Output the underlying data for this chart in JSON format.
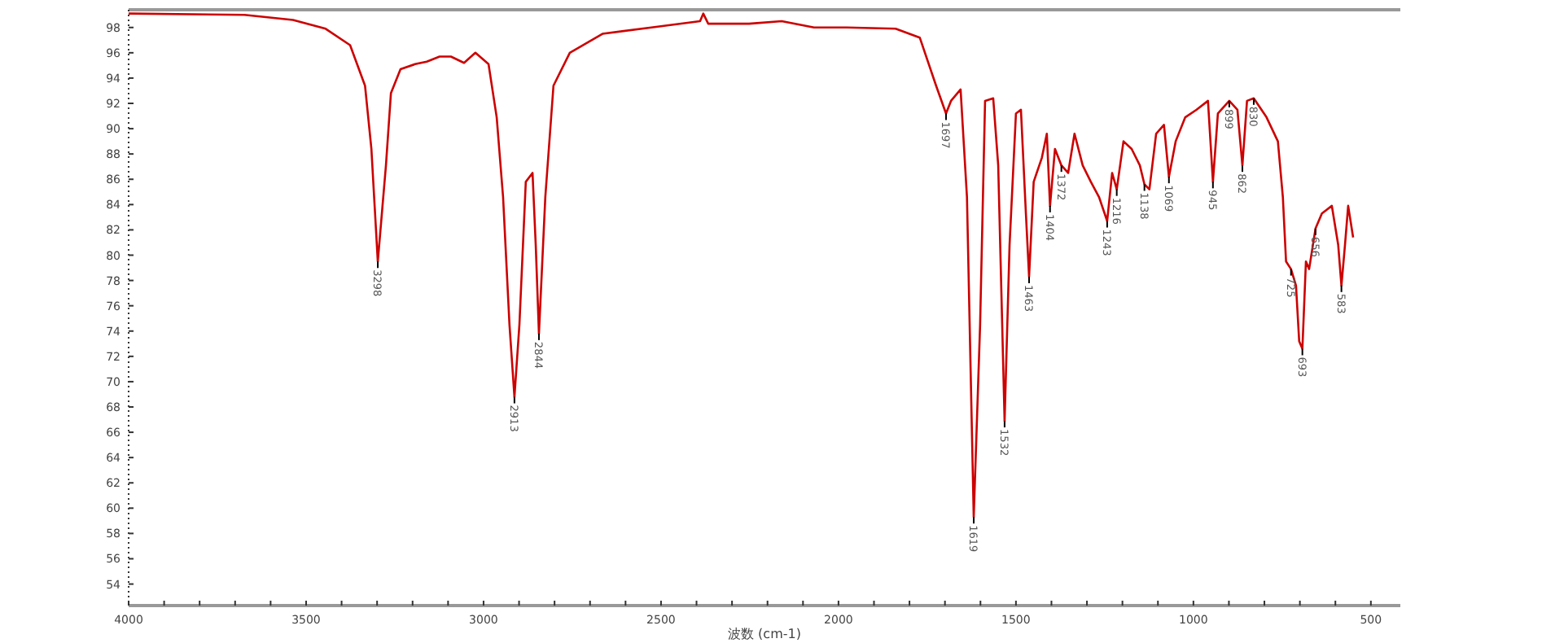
{
  "chart_data": {
    "type": "line",
    "xlabel": "波数 (cm-1)",
    "xlim": [
      4000,
      417
    ],
    "ylim": [
      52.3,
      99.4
    ],
    "xticks": [
      {
        "value": 4000,
        "label": "4000"
      },
      {
        "value": 3900,
        "label": null
      },
      {
        "value": 3800,
        "label": null
      },
      {
        "value": 3700,
        "label": null
      },
      {
        "value": 3600,
        "label": null
      },
      {
        "value": 3500,
        "label": "3500"
      },
      {
        "value": 3400,
        "label": null
      },
      {
        "value": 3300,
        "label": null
      },
      {
        "value": 3200,
        "label": null
      },
      {
        "value": 3100,
        "label": null
      },
      {
        "value": 3000,
        "label": "3000"
      },
      {
        "value": 2900,
        "label": null
      },
      {
        "value": 2800,
        "label": null
      },
      {
        "value": 2700,
        "label": null
      },
      {
        "value": 2600,
        "label": null
      },
      {
        "value": 2500,
        "label": "2500"
      },
      {
        "value": 2400,
        "label": null
      },
      {
        "value": 2300,
        "label": null
      },
      {
        "value": 2200,
        "label": null
      },
      {
        "value": 2100,
        "label": null
      },
      {
        "value": 2000,
        "label": "2000"
      },
      {
        "value": 1900,
        "label": null
      },
      {
        "value": 1800,
        "label": null
      },
      {
        "value": 1700,
        "label": null
      },
      {
        "value": 1600,
        "label": null
      },
      {
        "value": 1500,
        "label": "1500"
      },
      {
        "value": 1400,
        "label": null
      },
      {
        "value": 1300,
        "label": null
      },
      {
        "value": 1200,
        "label": null
      },
      {
        "value": 1100,
        "label": null
      },
      {
        "value": 1000,
        "label": "1000"
      },
      {
        "value": 900,
        "label": null
      },
      {
        "value": 800,
        "label": null
      },
      {
        "value": 700,
        "label": null
      },
      {
        "value": 600,
        "label": null
      },
      {
        "value": 500,
        "label": "500"
      }
    ],
    "yticks": [
      54,
      56,
      58,
      60,
      62,
      64,
      66,
      68,
      70,
      72,
      74,
      76,
      78,
      80,
      82,
      84,
      86,
      88,
      90,
      92,
      94,
      96,
      98
    ],
    "grid": false,
    "series": [
      {
        "color": "#cc0000",
        "x": [
          4000,
          3674,
          3537,
          3445,
          3376,
          3334,
          3316,
          3298,
          3275,
          3261,
          3234,
          3193,
          3160,
          3124,
          3092,
          3055,
          3023,
          2986,
          2963,
          2945,
          2927,
          2913,
          2899,
          2881,
          2862,
          2853,
          2844,
          2826,
          2803,
          2757,
          2665,
          2527,
          2390,
          2381,
          2367,
          2252,
          2160,
          2069,
          1977,
          1839,
          1771,
          1725,
          1697,
          1683,
          1656,
          1638,
          1619,
          1601,
          1587,
          1564,
          1550,
          1532,
          1518,
          1500,
          1486,
          1472,
          1463,
          1450,
          1427,
          1413,
          1404,
          1390,
          1372,
          1353,
          1335,
          1312,
          1289,
          1266,
          1243,
          1229,
          1216,
          1197,
          1174,
          1151,
          1138,
          1124,
          1105,
          1083,
          1069,
          1050,
          1023,
          991,
          959,
          945,
          931,
          899,
          876,
          862,
          849,
          830,
          794,
          762,
          748,
          739,
          725,
          711,
          702,
          693,
          683,
          674,
          656,
          638,
          610,
          592,
          583,
          573,
          564,
          550
        ],
        "values": [
          99.1,
          99.0,
          98.6,
          97.9,
          96.6,
          93.4,
          88.4,
          79.5,
          87.1,
          92.8,
          94.7,
          95.1,
          95.3,
          95.7,
          95.7,
          95.2,
          96.0,
          95.1,
          90.9,
          84.6,
          74.5,
          68.8,
          74.5,
          85.8,
          86.5,
          80.8,
          73.8,
          84.6,
          93.4,
          96.0,
          97.5,
          98.0,
          98.5,
          99.1,
          98.3,
          98.3,
          98.5,
          98.0,
          98.0,
          97.9,
          97.2,
          93.4,
          91.2,
          92.2,
          93.1,
          84.6,
          59.3,
          74.5,
          92.2,
          92.4,
          87.1,
          66.9,
          80.8,
          91.2,
          91.5,
          83.3,
          78.3,
          85.8,
          87.7,
          89.6,
          83.9,
          88.4,
          87.1,
          86.5,
          89.6,
          87.1,
          85.8,
          84.6,
          82.7,
          86.5,
          85.2,
          89.0,
          88.4,
          87.1,
          85.6,
          85.2,
          89.6,
          90.3,
          86.2,
          89.0,
          90.9,
          91.5,
          92.2,
          85.8,
          91.2,
          92.2,
          91.5,
          87.1,
          92.2,
          92.4,
          90.9,
          89.0,
          84.6,
          79.5,
          78.9,
          77.6,
          73.2,
          72.6,
          79.5,
          78.9,
          82.1,
          83.3,
          83.9,
          80.8,
          77.6,
          80.8,
          83.9,
          81.4
        ]
      }
    ],
    "annotations": [
      {
        "text": "3298",
        "x": 3298,
        "y": 79.5
      },
      {
        "text": "2913",
        "x": 2913,
        "y": 68.8
      },
      {
        "text": "2844",
        "x": 2844,
        "y": 73.8
      },
      {
        "text": "1697",
        "x": 1697,
        "y": 91.2
      },
      {
        "text": "1619",
        "x": 1619,
        "y": 59.3
      },
      {
        "text": "1532",
        "x": 1532,
        "y": 66.9
      },
      {
        "text": "1463",
        "x": 1463,
        "y": 78.3
      },
      {
        "text": "1404",
        "x": 1404,
        "y": 83.9
      },
      {
        "text": "1372",
        "x": 1372,
        "y": 87.1
      },
      {
        "text": "1243",
        "x": 1243,
        "y": 82.7
      },
      {
        "text": "1216",
        "x": 1216,
        "y": 85.2
      },
      {
        "text": "1138",
        "x": 1138,
        "y": 85.6
      },
      {
        "text": "1069",
        "x": 1069,
        "y": 86.2
      },
      {
        "text": "945",
        "x": 945,
        "y": 85.8
      },
      {
        "text": "899",
        "x": 899,
        "y": 92.2
      },
      {
        "text": "862",
        "x": 862,
        "y": 87.1
      },
      {
        "text": "830",
        "x": 830,
        "y": 92.4
      },
      {
        "text": "725",
        "x": 725,
        "y": 78.9
      },
      {
        "text": "693",
        "x": 693,
        "y": 72.6
      },
      {
        "text": "656",
        "x": 656,
        "y": 82.1
      },
      {
        "text": "583",
        "x": 583,
        "y": 77.6
      }
    ]
  }
}
